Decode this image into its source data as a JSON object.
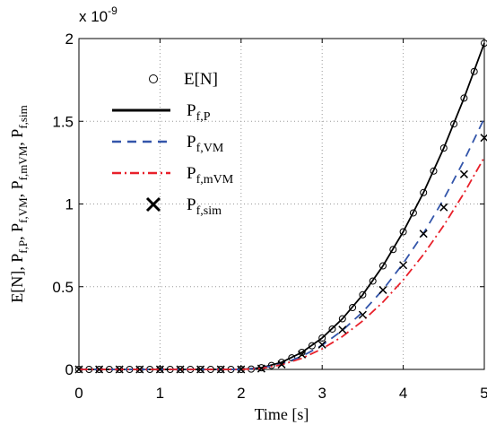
{
  "chart_data": {
    "type": "line",
    "xlabel": "Time [s]",
    "ylabel_parts": [
      {
        "t": "E[N], P"
      },
      {
        "s": "f,P"
      },
      {
        "t": ", P"
      },
      {
        "s": "f,VM"
      },
      {
        "t": ", P"
      },
      {
        "s": "f,mVM"
      },
      {
        "t": ", P"
      },
      {
        "s": "f,sim"
      }
    ],
    "y_multiplier": "x 10",
    "y_multiplier_exp": "-9",
    "xlim": [
      0,
      5
    ],
    "ylim": [
      0,
      2
    ],
    "xticks": [
      0,
      1,
      2,
      3,
      4,
      5
    ],
    "yticks": [
      0,
      0.5,
      1,
      1.5,
      2
    ],
    "grid": true,
    "series": [
      {
        "name": "E[N]",
        "style": "circle",
        "color": "#000000",
        "x": [
          0,
          0.125,
          0.25,
          0.375,
          0.5,
          0.625,
          0.75,
          0.875,
          1,
          1.125,
          1.25,
          1.375,
          1.5,
          1.625,
          1.75,
          1.875,
          2,
          2.125,
          2.25,
          2.375,
          2.5,
          2.625,
          2.75,
          2.875,
          3,
          3.125,
          3.25,
          3.375,
          3.5,
          3.625,
          3.75,
          3.875,
          4,
          4.125,
          4.25,
          4.375,
          4.5,
          4.625,
          4.75,
          4.875,
          5
        ],
        "values": [
          0,
          0,
          0,
          0,
          0,
          0,
          0,
          0,
          0,
          0,
          0,
          0,
          0,
          0,
          0,
          0,
          0,
          0.002,
          0.01,
          0.024,
          0.043,
          0.07,
          0.103,
          0.143,
          0.19,
          0.244,
          0.306,
          0.374,
          0.451,
          0.534,
          0.626,
          0.725,
          0.832,
          0.946,
          1.069,
          1.199,
          1.338,
          1.484,
          1.64,
          1.801,
          1.972
        ]
      },
      {
        "name": "P",
        "name_sub": "f,P",
        "style": "solid",
        "color": "#000000",
        "x": [
          0,
          2,
          2.25,
          2.5,
          2.75,
          3,
          3.25,
          3.5,
          3.75,
          4,
          4.25,
          4.5,
          4.75,
          5
        ],
        "values": [
          0,
          0,
          0.01,
          0.043,
          0.103,
          0.19,
          0.306,
          0.451,
          0.626,
          0.832,
          1.069,
          1.338,
          1.64,
          1.972
        ]
      },
      {
        "name": "P",
        "name_sub": "f,VM",
        "style": "dashed",
        "color": "#3355aa",
        "x": [
          0,
          2,
          2.25,
          2.5,
          2.75,
          3,
          3.25,
          3.5,
          3.75,
          4,
          4.25,
          4.5,
          4.75,
          5
        ],
        "values": [
          0,
          0,
          0.008,
          0.033,
          0.079,
          0.146,
          0.236,
          0.347,
          0.482,
          0.641,
          0.823,
          1.03,
          1.263,
          1.518
        ]
      },
      {
        "name": "P",
        "name_sub": "f,mVM",
        "style": "dashdot",
        "color": "#e8202a",
        "x": [
          0,
          2,
          2.25,
          2.5,
          2.75,
          3,
          3.25,
          3.5,
          3.75,
          4,
          4.25,
          4.5,
          4.75,
          5
        ],
        "values": [
          0,
          0,
          0.006,
          0.028,
          0.067,
          0.124,
          0.199,
          0.293,
          0.407,
          0.541,
          0.695,
          0.87,
          1.066,
          1.282
        ]
      },
      {
        "name": "P",
        "name_sub": "f,sim",
        "style": "cross",
        "color": "#000000",
        "x": [
          0,
          0.25,
          0.5,
          0.75,
          1,
          1.25,
          1.5,
          1.75,
          2,
          2.25,
          2.5,
          2.75,
          3,
          3.25,
          3.5,
          3.75,
          4,
          4.25,
          4.5,
          4.75,
          5
        ],
        "values": [
          0,
          0,
          0,
          0,
          0,
          0,
          0,
          0,
          0,
          0.005,
          0.03,
          0.09,
          0.15,
          0.24,
          0.33,
          0.48,
          0.63,
          0.82,
          0.98,
          1.18,
          1.4
        ]
      }
    ]
  }
}
